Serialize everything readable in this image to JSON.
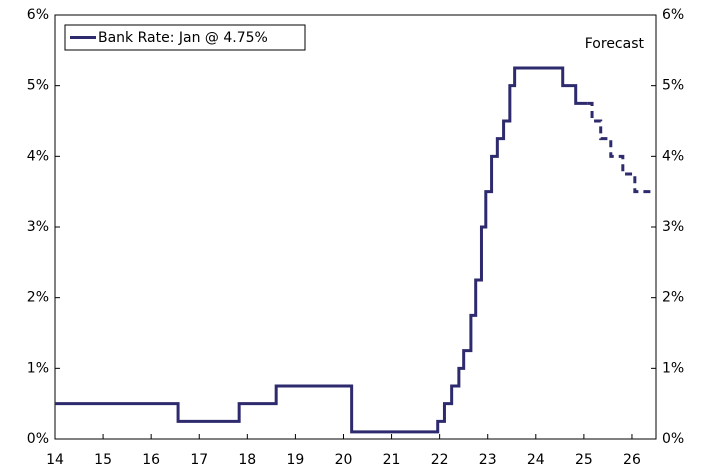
{
  "chart_data": {
    "type": "line",
    "legend_label": "Bank Rate: Jan @ 4.75%",
    "annotation": "Forecast",
    "series": [
      {
        "name": "Bank Rate: Jan @ 4.75%",
        "color": "#2e2a6e",
        "dashed": false,
        "x": [
          14,
          16.56,
          16.56,
          17.83,
          17.83,
          18.6,
          18.6,
          20.17,
          20.17,
          21.96,
          21.96,
          22.1,
          22.1,
          22.25,
          22.25,
          22.4,
          22.4,
          22.5,
          22.5,
          22.65,
          22.65,
          22.75,
          22.75,
          22.87,
          22.87,
          22.96,
          22.96,
          23.08,
          23.08,
          23.2,
          23.2,
          23.33,
          23.33,
          23.46,
          23.46,
          23.56,
          23.56,
          24.56,
          24.56,
          24.83,
          24.83,
          25.08
        ],
        "values": [
          0.5,
          0.5,
          0.25,
          0.25,
          0.5,
          0.5,
          0.75,
          0.75,
          0.1,
          0.1,
          0.25,
          0.25,
          0.5,
          0.5,
          0.75,
          0.75,
          1,
          1,
          1.25,
          1.25,
          1.75,
          1.75,
          2.25,
          2.25,
          3,
          3,
          3.5,
          3.5,
          4,
          4,
          4.25,
          4.25,
          4.5,
          4.5,
          5,
          5,
          5.25,
          5.25,
          5,
          5,
          4.75,
          4.75
        ]
      },
      {
        "color": "#2e2a6e",
        "dashed": true,
        "x": [
          25.08,
          25.17,
          25.17,
          25.35,
          25.35,
          25.56,
          25.56,
          25.81,
          25.81,
          26.06,
          26.06,
          26.5
        ],
        "values": [
          4.75,
          4.75,
          4.5,
          4.5,
          4.25,
          4.25,
          4,
          4,
          3.75,
          3.75,
          3.5,
          3.5
        ]
      }
    ],
    "xlim": [
      14,
      26.5
    ],
    "xticks": [
      14,
      15,
      16,
      17,
      18,
      19,
      20,
      21,
      22,
      23,
      24,
      25,
      26
    ],
    "ylim": [
      0,
      6
    ],
    "yticks": [
      {
        "value": 0,
        "label": "0%"
      },
      {
        "value": 1,
        "label": "1%"
      },
      {
        "value": 2,
        "label": "2%"
      },
      {
        "value": 3,
        "label": "3%"
      },
      {
        "value": 4,
        "label": "4%"
      },
      {
        "value": 5,
        "label": "5%"
      },
      {
        "value": 6,
        "label": "6%"
      }
    ],
    "y2lim": [
      0,
      6
    ],
    "y2ticks": [
      {
        "value": 0,
        "label": "0%"
      },
      {
        "value": 1,
        "label": "1%"
      },
      {
        "value": 2,
        "label": "2%"
      },
      {
        "value": 3,
        "label": "3%"
      },
      {
        "value": 4,
        "label": "4%"
      },
      {
        "value": 5,
        "label": "5%"
      },
      {
        "value": 6,
        "label": "6%"
      }
    ],
    "grid": false
  }
}
